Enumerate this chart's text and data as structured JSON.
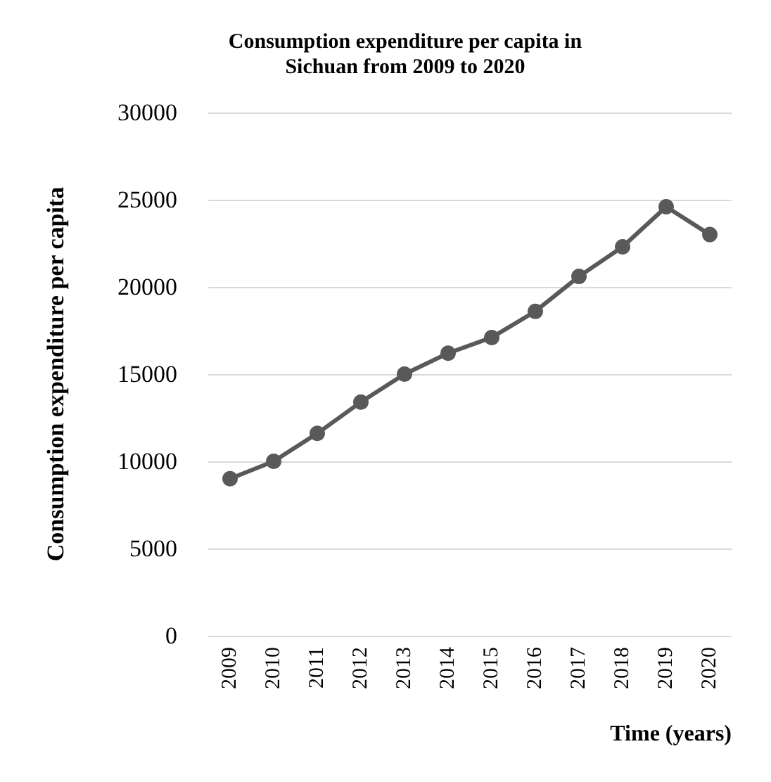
{
  "chart_data": {
    "type": "line",
    "title": "Consumption expenditure per capita in\nSichuan from 2009 to 2020",
    "xlabel": "Time (years)",
    "ylabel": "Consumption expenditure per capita",
    "categories": [
      "2009",
      "2010",
      "2011",
      "2012",
      "2013",
      "2014",
      "2015",
      "2016",
      "2017",
      "2018",
      "2019",
      "2020"
    ],
    "series": [
      {
        "color": "#595959",
        "values": [
          9000,
          10000,
          11600,
          13400,
          15000,
          16200,
          17100,
          18600,
          20600,
          22300,
          24600,
          23000
        ]
      }
    ],
    "ylim": [
      0,
      30000
    ],
    "yticks": [
      0,
      5000,
      10000,
      15000,
      20000,
      25000,
      30000
    ],
    "grid": "y",
    "marker": "circle",
    "line_style": "solid"
  }
}
